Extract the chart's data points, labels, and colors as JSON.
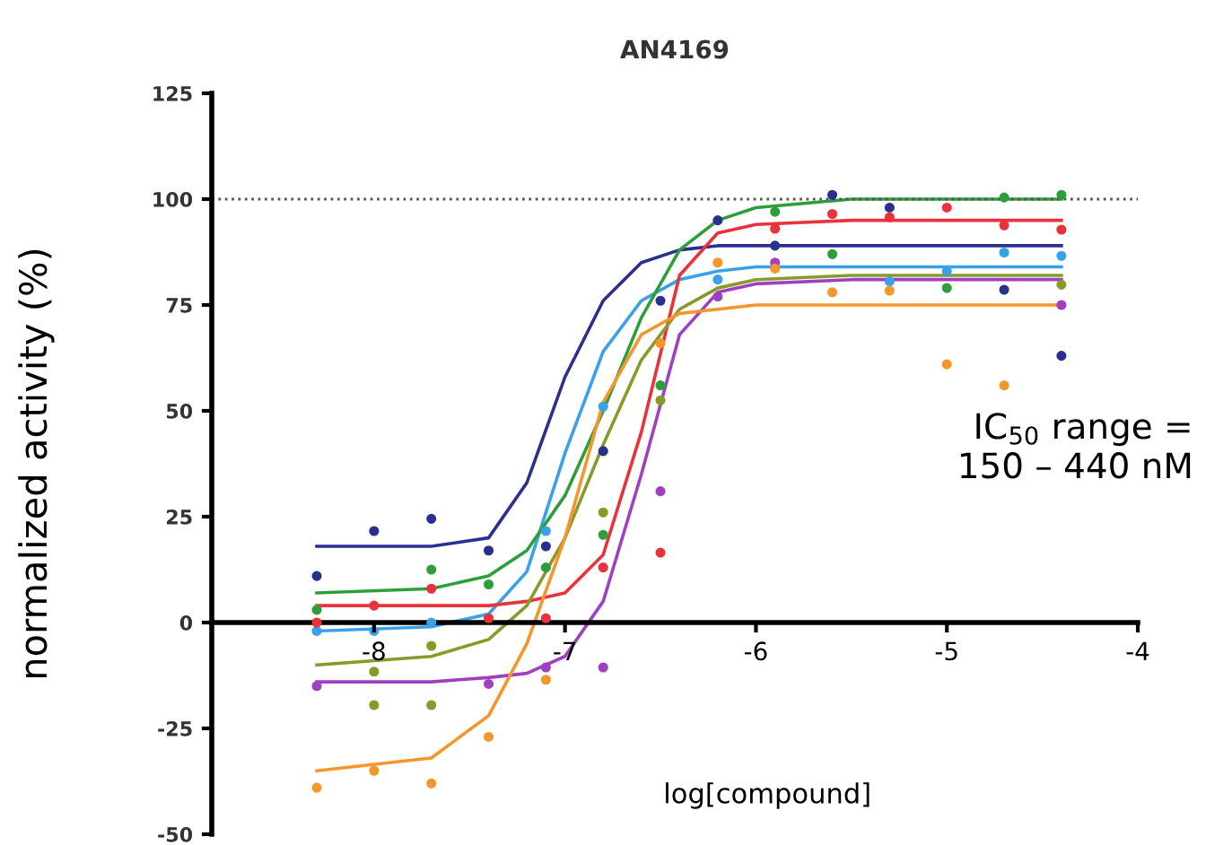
{
  "chart_data": {
    "type": "line",
    "title": "AN4169",
    "xlabel": "log[compound]",
    "ylabel": "normalized activity (%)",
    "xlim": [
      -8.85,
      -4
    ],
    "xticks": [
      -8,
      -7,
      -6,
      -5,
      -4
    ],
    "ylim": [
      -50,
      125
    ],
    "yticks": [
      -50,
      -25,
      0,
      25,
      50,
      75,
      100,
      125
    ],
    "grid": false,
    "legend": false,
    "ref_lines": [
      {
        "axis": "y",
        "value": 100,
        "color": "#555555",
        "line_style": "dotted"
      }
    ],
    "annotations": [
      "IC$_{50}$ range =\n150 – 440 nM"
    ],
    "series": [
      {
        "color": "#2b2f8f",
        "x": [
          -8.3,
          -7.7,
          -7.4,
          -7.2,
          -7.0,
          -6.8,
          -6.6,
          -6.4,
          -6.2,
          -6.0,
          -5.5,
          -4.4
        ],
        "values": [
          18,
          18,
          20,
          33,
          58,
          76,
          85,
          88,
          89,
          89,
          89,
          89
        ]
      },
      {
        "color": "#3aa0e8",
        "x": [
          -8.3,
          -7.7,
          -7.4,
          -7.2,
          -7.0,
          -6.8,
          -6.6,
          -6.4,
          -6.2,
          -6.0,
          -5.5,
          -4.4
        ],
        "values": [
          -2,
          -1,
          2,
          12,
          40,
          64,
          76,
          81,
          83,
          84,
          84,
          84
        ]
      },
      {
        "color": "#2e9e3a",
        "x": [
          -8.3,
          -7.7,
          -7.4,
          -7.2,
          -7.0,
          -6.8,
          -6.6,
          -6.4,
          -6.2,
          -6.0,
          -5.5,
          -4.4
        ],
        "values": [
          7,
          8,
          11,
          17,
          30,
          50,
          72,
          88,
          95,
          98,
          100,
          100
        ]
      },
      {
        "color": "#e8323c",
        "x": [
          -8.3,
          -7.7,
          -7.4,
          -7.2,
          -7.0,
          -6.8,
          -6.6,
          -6.4,
          -6.2,
          -6.0,
          -5.5,
          -4.4
        ],
        "values": [
          4,
          4,
          4,
          5,
          7,
          16,
          45,
          82,
          92,
          94,
          95,
          95
        ]
      },
      {
        "color": "#8a9a2a",
        "x": [
          -8.3,
          -7.7,
          -7.4,
          -7.2,
          -7.0,
          -6.8,
          -6.6,
          -6.4,
          -6.2,
          -6.0,
          -5.5,
          -4.4
        ],
        "values": [
          -10,
          -8,
          -4,
          4,
          20,
          42,
          62,
          74,
          79,
          81,
          82,
          82
        ]
      },
      {
        "color": "#a040c0",
        "x": [
          -8.3,
          -7.7,
          -7.4,
          -7.2,
          -7.0,
          -6.8,
          -6.6,
          -6.4,
          -6.2,
          -6.0,
          -5.5,
          -4.4
        ],
        "values": [
          -14,
          -14,
          -13,
          -12,
          -8,
          5,
          35,
          68,
          78,
          80,
          81,
          81
        ]
      },
      {
        "color": "#f5962a",
        "x": [
          -8.3,
          -7.7,
          -7.4,
          -7.2,
          -7.0,
          -6.8,
          -6.6,
          -6.4,
          -6.2,
          -6.0,
          -5.5,
          -4.4
        ],
        "values": [
          -35,
          -32,
          -22,
          -5,
          20,
          52,
          68,
          73,
          74,
          75,
          75,
          75
        ]
      },
      {
        "type": "scatter",
        "color": "#2b2f8f",
        "x": [
          -8.3,
          -8.0,
          -7.7,
          -7.4,
          -7.1,
          -6.8,
          -6.5,
          -6.2,
          -5.9,
          -5.6,
          -5.3,
          -4.7,
          -4.4
        ],
        "values": [
          11,
          21.6,
          24.5,
          17,
          18,
          40.5,
          76,
          95,
          89,
          101,
          98,
          78.6,
          63
        ]
      },
      {
        "type": "scatter",
        "color": "#3aa0e8",
        "x": [
          -8.3,
          -8.0,
          -7.7,
          -7.1,
          -6.8,
          -6.2,
          -5.3,
          -5.0,
          -4.7,
          -4.4
        ],
        "values": [
          -2,
          -2,
          0,
          21.6,
          51,
          81,
          80.6,
          83,
          87.4,
          86.6
        ]
      },
      {
        "type": "scatter",
        "color": "#2e9e3a",
        "x": [
          -8.3,
          -7.7,
          -7.4,
          -7.1,
          -6.8,
          -6.5,
          -5.9,
          -5.6,
          -5.0,
          -4.7,
          -4.4
        ],
        "values": [
          3,
          12.5,
          9,
          13,
          20.7,
          56,
          97,
          87,
          79,
          100.4,
          101
        ]
      },
      {
        "type": "scatter",
        "color": "#e8323c",
        "x": [
          -8.3,
          -8.0,
          -7.7,
          -7.4,
          -7.1,
          -6.8,
          -6.5,
          -5.9,
          -5.6,
          -5.3,
          -5.0,
          -4.7,
          -4.4
        ],
        "values": [
          0,
          4,
          8,
          1,
          1,
          13,
          16.5,
          93,
          96.5,
          95.7,
          98,
          93.8,
          92.8
        ]
      },
      {
        "type": "scatter",
        "color": "#8a9a2a",
        "x": [
          -8.0,
          -8.0,
          -7.7,
          -7.7,
          -6.8,
          -6.5,
          -4.4
        ],
        "values": [
          -11.6,
          -19.5,
          -5.5,
          -19.5,
          26,
          52.5,
          79.8
        ]
      },
      {
        "type": "scatter",
        "color": "#a040c0",
        "x": [
          -8.3,
          -7.4,
          -7.1,
          -6.8,
          -6.5,
          -6.2,
          -5.9,
          -4.4
        ],
        "values": [
          -15,
          -14.5,
          -10.6,
          -10.6,
          31,
          77,
          85,
          75
        ]
      },
      {
        "type": "scatter",
        "color": "#f5962a",
        "x": [
          -8.3,
          -8.0,
          -7.7,
          -7.4,
          -7.1,
          -6.5,
          -6.2,
          -5.9,
          -5.6,
          -5.3,
          -5.0,
          -4.7
        ],
        "values": [
          -39,
          -35,
          -38,
          -27,
          -13.5,
          66,
          85,
          83.6,
          78,
          78.4,
          61,
          56
        ]
      }
    ]
  }
}
